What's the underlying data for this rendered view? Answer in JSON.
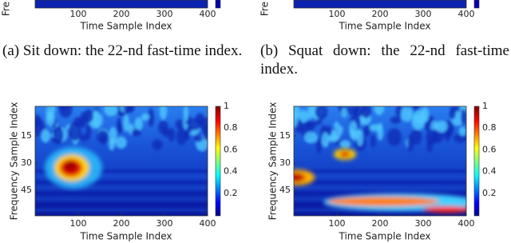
{
  "top_panels": [
    {
      "ylabel": "Fre",
      "xticks": [
        "100",
        "200",
        "300",
        "400"
      ],
      "xlabel": "Time Sample Index",
      "caption": "(a) Sit down: the 22-nd fast-time index."
    },
    {
      "ylabel": "Fre",
      "xticks": [
        "100",
        "200",
        "300",
        "400"
      ],
      "xlabel": "Time Sample Index",
      "caption": "(b) Squat down: the 22-nd fast-time index."
    }
  ],
  "bottom_panels": [
    {
      "ylabel": "Frequency Sample Index",
      "yticks": [
        "15",
        "30",
        "45"
      ],
      "xticks": [
        "100",
        "200",
        "300",
        "400"
      ],
      "xlabel": "Time Sample Index",
      "colorbar_ticks": [
        "1",
        "0.8",
        "0.6",
        "0.4",
        "0.2"
      ]
    },
    {
      "ylabel": "Frequency Sample Index",
      "yticks": [
        "15",
        "30",
        "45"
      ],
      "xticks": [
        "100",
        "200",
        "300",
        "400"
      ],
      "xlabel": "Time Sample Index",
      "colorbar_ticks": [
        "1",
        "0.8",
        "0.6",
        "0.4",
        "0.2"
      ]
    }
  ]
}
